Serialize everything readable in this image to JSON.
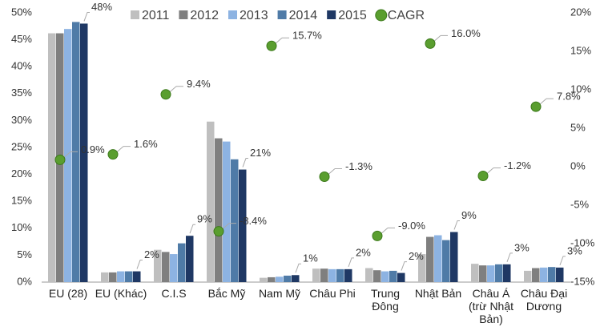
{
  "chart_data": {
    "type": "bar",
    "categories": [
      "EU (28)",
      "EU (Khác)",
      "C.I.S",
      "Bắc Mỹ",
      "Nam Mỹ",
      "Châu Phi",
      "Trung Đông",
      "Nhật Bản",
      "Châu Á (trừ Nhật Bản)",
      "Châu Đại Dương"
    ],
    "series": [
      {
        "name": "2011",
        "color": "#bfbfbf",
        "values": [
          46.2,
          1.8,
          6.0,
          29.8,
          0.8,
          2.5,
          2.6,
          5.2,
          3.4,
          2.1
        ]
      },
      {
        "name": "2012",
        "color": "#7f7f7f",
        "values": [
          46.2,
          1.8,
          5.6,
          26.7,
          0.9,
          2.5,
          2.2,
          8.4,
          3.1,
          2.6
        ]
      },
      {
        "name": "2013",
        "color": "#8db3e2",
        "values": [
          47.0,
          2.0,
          5.2,
          26.1,
          1.0,
          2.4,
          2.0,
          8.7,
          3.1,
          2.7
        ]
      },
      {
        "name": "2014",
        "color": "#4f7ba7",
        "values": [
          48.3,
          2.0,
          7.2,
          22.8,
          1.2,
          2.4,
          2.1,
          7.8,
          3.3,
          2.8
        ]
      },
      {
        "name": "2015",
        "color": "#1f3864",
        "values": [
          48.0,
          2.0,
          8.6,
          20.9,
          1.3,
          2.4,
          1.7,
          9.3,
          3.3,
          2.7
        ],
        "value_labels": [
          "48%",
          "2%",
          "9%",
          "21%",
          "1%",
          "2%",
          "2%",
          "9%",
          "3%",
          "3%"
        ]
      },
      {
        "name": "CAGR",
        "type": "scatter",
        "axis": "y2",
        "color": "#5a9e2f",
        "values": [
          0.9,
          1.6,
          9.4,
          -8.4,
          15.7,
          -1.3,
          -9.0,
          16.0,
          -1.2,
          7.8
        ],
        "value_labels": [
          "0.9%",
          "1.6%",
          "9.4%",
          "-8.4%",
          "15.7%",
          "-1.3%",
          "-9.0%",
          "16.0%",
          "-1.2%",
          "7.8%"
        ]
      }
    ],
    "ylim": [
      0,
      50
    ],
    "yticks": [
      {
        "value": 0,
        "label": "0%"
      },
      {
        "value": 5,
        "label": "5%"
      },
      {
        "value": 10,
        "label": "10%"
      },
      {
        "value": 15,
        "label": "15%"
      },
      {
        "value": 20,
        "label": "20%"
      },
      {
        "value": 25,
        "label": "25%"
      },
      {
        "value": 30,
        "label": "30%"
      },
      {
        "value": 35,
        "label": "35%"
      },
      {
        "value": 40,
        "label": "40%"
      },
      {
        "value": 45,
        "label": "45%"
      },
      {
        "value": 50,
        "label": "50%"
      }
    ],
    "y2lim": [
      -15,
      20
    ],
    "y2ticks": [
      {
        "value": -15,
        "label": "-15%"
      },
      {
        "value": -10,
        "label": "-10%"
      },
      {
        "value": -5,
        "label": "-5%"
      },
      {
        "value": 0,
        "label": "0%"
      },
      {
        "value": 5,
        "label": "5%"
      },
      {
        "value": 10,
        "label": "10%"
      },
      {
        "value": 15,
        "label": "15%"
      },
      {
        "value": 20,
        "label": "20%"
      }
    ],
    "grid": false,
    "legend": "top"
  }
}
